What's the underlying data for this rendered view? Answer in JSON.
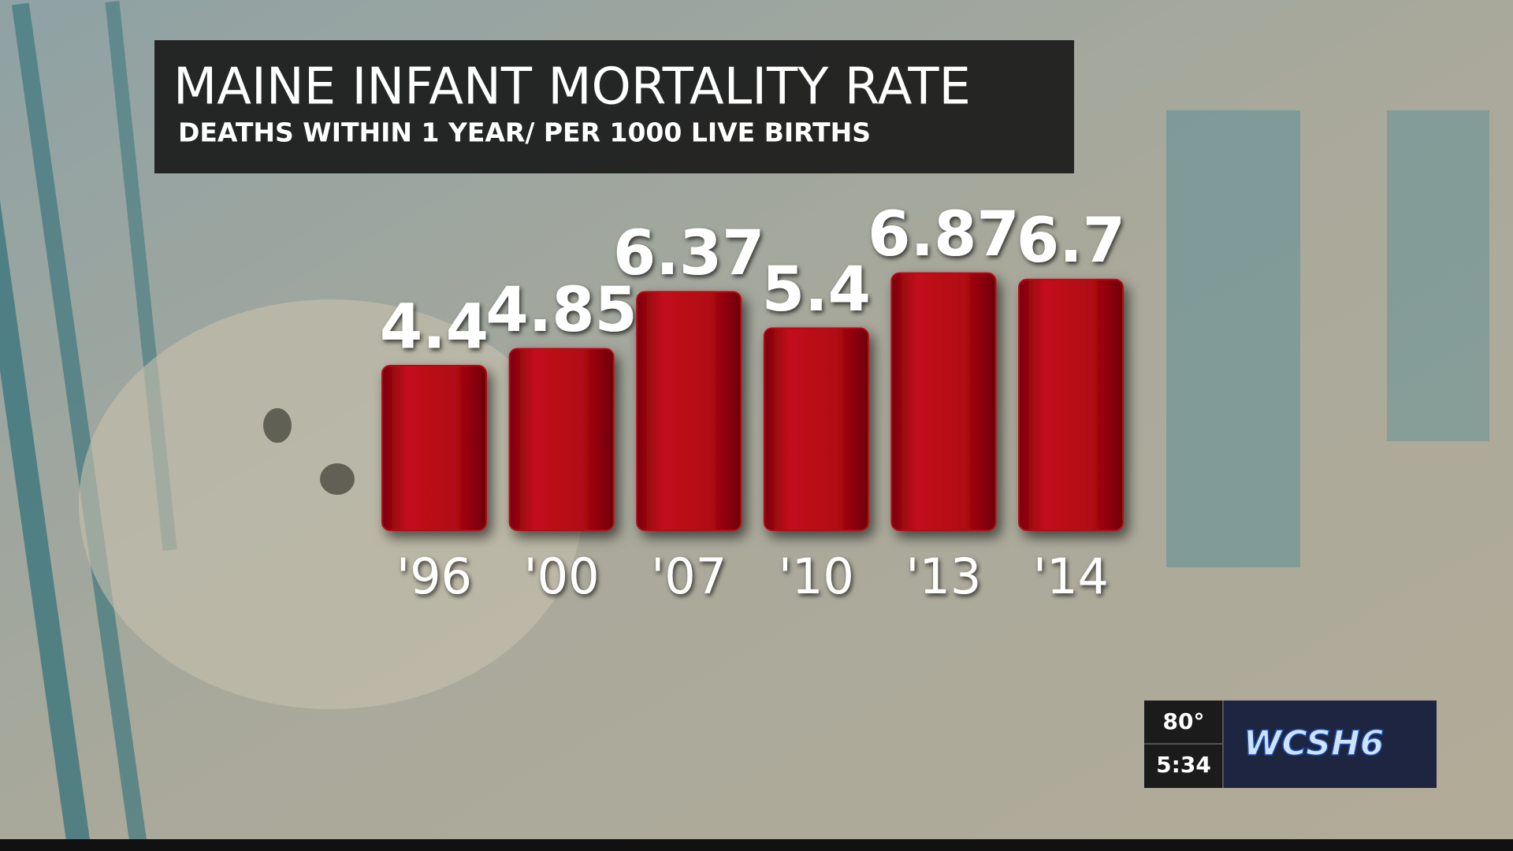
{
  "chart_data": {
    "type": "bar",
    "title": "MAINE INFANT MORTALITY RATE",
    "subtitle": "DEATHS WITHIN 1 YEAR/ PER 1000 LIVE BIRTHS",
    "categories": [
      "'96",
      "'00",
      "'07",
      "'10",
      "'13",
      "'14"
    ],
    "values": [
      4.4,
      4.85,
      6.37,
      5.4,
      6.87,
      6.7
    ],
    "color": "#b30812"
  },
  "overlay": {
    "temperature": "80°",
    "time": "5:34",
    "station": "WCSH6"
  }
}
